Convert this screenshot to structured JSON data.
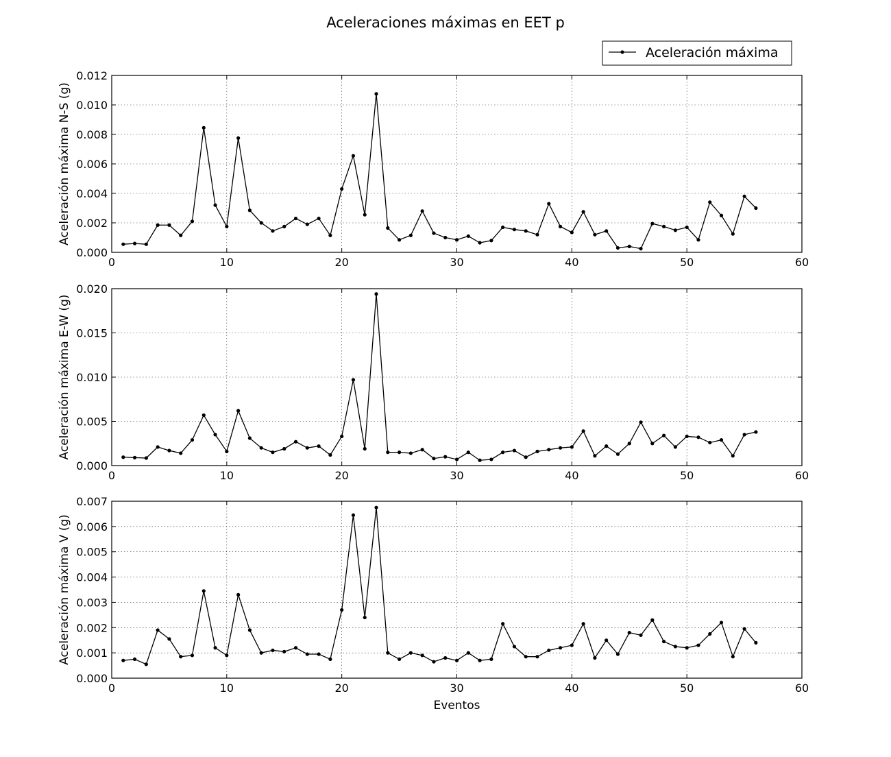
{
  "figure": {
    "title": "Aceleraciones máximas en EET p",
    "legend_label": "Aceleración máxima",
    "xlabel": "Eventos"
  },
  "chart_data": [
    {
      "type": "line",
      "title": "Aceleraciones máximas en EET p",
      "xlabel": "",
      "ylabel": "Aceleración máxima N-S (g)",
      "xlim": [
        0,
        60
      ],
      "ylim": [
        0,
        0.012
      ],
      "xticks": [
        0,
        10,
        20,
        30,
        40,
        50,
        60
      ],
      "xtick_labels": [
        "0",
        "10",
        "20",
        "30",
        "40",
        "50",
        "60"
      ],
      "yticks": [
        0,
        0.002,
        0.004,
        0.006,
        0.008,
        0.01,
        0.012
      ],
      "ytick_labels": [
        "0.000",
        "0.002",
        "0.004",
        "0.006",
        "0.008",
        "0.010",
        "0.012"
      ],
      "grid": true,
      "legend": "top-right, above plot",
      "color": "#000000",
      "series": [
        {
          "name": "Aceleración máxima",
          "x": [
            1,
            2,
            3,
            4,
            5,
            6,
            7,
            8,
            9,
            10,
            11,
            12,
            13,
            14,
            15,
            16,
            17,
            18,
            19,
            20,
            21,
            22,
            23,
            24,
            25,
            26,
            27,
            28,
            29,
            30,
            31,
            32,
            33,
            34,
            35,
            36,
            37,
            38,
            39,
            40,
            41,
            42,
            43,
            44,
            45,
            46,
            47,
            48,
            49,
            50,
            51,
            52,
            53,
            54,
            55,
            56
          ],
          "y": [
            0.00055,
            0.0006,
            0.00055,
            0.00185,
            0.00185,
            0.00115,
            0.0021,
            0.00845,
            0.0032,
            0.00175,
            0.00775,
            0.00285,
            0.002,
            0.00145,
            0.00175,
            0.0023,
            0.0019,
            0.0023,
            0.00115,
            0.0043,
            0.00655,
            0.00255,
            0.01075,
            0.00165,
            0.00085,
            0.00115,
            0.0028,
            0.0013,
            0.001,
            0.00085,
            0.0011,
            0.00065,
            0.0008,
            0.0017,
            0.00155,
            0.00145,
            0.0012,
            0.0033,
            0.00175,
            0.00135,
            0.00275,
            0.0012,
            0.00145,
            0.0003,
            0.0004,
            0.00025,
            0.00195,
            0.00175,
            0.0015,
            0.0017,
            0.00085,
            0.0034,
            0.0025,
            0.00125,
            0.0038,
            0.003
          ]
        }
      ]
    },
    {
      "type": "line",
      "xlabel": "",
      "ylabel": "Aceleración máxima E-W (g)",
      "xlim": [
        0,
        60
      ],
      "ylim": [
        0,
        0.02
      ],
      "xticks": [
        0,
        10,
        20,
        30,
        40,
        50,
        60
      ],
      "xtick_labels": [
        "0",
        "10",
        "20",
        "30",
        "40",
        "50",
        "60"
      ],
      "yticks": [
        0,
        0.005,
        0.01,
        0.015,
        0.02
      ],
      "ytick_labels": [
        "0.000",
        "0.005",
        "0.010",
        "0.015",
        "0.020"
      ],
      "grid": true,
      "color": "#000000",
      "series": [
        {
          "name": "Aceleración máxima",
          "x": [
            1,
            2,
            3,
            4,
            5,
            6,
            7,
            8,
            9,
            10,
            11,
            12,
            13,
            14,
            15,
            16,
            17,
            18,
            19,
            20,
            21,
            22,
            23,
            24,
            25,
            26,
            27,
            28,
            29,
            30,
            31,
            32,
            33,
            34,
            35,
            36,
            37,
            38,
            39,
            40,
            41,
            42,
            43,
            44,
            45,
            46,
            47,
            48,
            49,
            50,
            51,
            52,
            53,
            54,
            55,
            56
          ],
          "y": [
            0.00095,
            0.0009,
            0.00085,
            0.0021,
            0.0017,
            0.0014,
            0.0029,
            0.0057,
            0.0035,
            0.0016,
            0.0062,
            0.0031,
            0.002,
            0.0015,
            0.0019,
            0.0027,
            0.002,
            0.0022,
            0.0012,
            0.0033,
            0.0097,
            0.0019,
            0.0194,
            0.0015,
            0.0015,
            0.0014,
            0.0018,
            0.0008,
            0.001,
            0.0007,
            0.0015,
            0.0006,
            0.0007,
            0.0015,
            0.0017,
            0.00095,
            0.0016,
            0.0018,
            0.002,
            0.0021,
            0.0039,
            0.0011,
            0.0022,
            0.0013,
            0.0025,
            0.0049,
            0.0025,
            0.0034,
            0.0021,
            0.0033,
            0.0032,
            0.0026,
            0.0029,
            0.0011,
            0.0035,
            0.0038
          ]
        }
      ]
    },
    {
      "type": "line",
      "xlabel": "Eventos",
      "ylabel": "Aceleración máxima V (g)",
      "xlim": [
        0,
        60
      ],
      "ylim": [
        0,
        0.007
      ],
      "xticks": [
        0,
        10,
        20,
        30,
        40,
        50,
        60
      ],
      "xtick_labels": [
        "0",
        "10",
        "20",
        "30",
        "40",
        "50",
        "60"
      ],
      "yticks": [
        0,
        0.001,
        0.002,
        0.003,
        0.004,
        0.005,
        0.006,
        0.007
      ],
      "ytick_labels": [
        "0.000",
        "0.001",
        "0.002",
        "0.003",
        "0.004",
        "0.005",
        "0.006",
        "0.007"
      ],
      "grid": true,
      "color": "#000000",
      "series": [
        {
          "name": "Aceleración máxima",
          "x": [
            1,
            2,
            3,
            4,
            5,
            6,
            7,
            8,
            9,
            10,
            11,
            12,
            13,
            14,
            15,
            16,
            17,
            18,
            19,
            20,
            21,
            22,
            23,
            24,
            25,
            26,
            27,
            28,
            29,
            30,
            31,
            32,
            33,
            34,
            35,
            36,
            37,
            38,
            39,
            40,
            41,
            42,
            43,
            44,
            45,
            46,
            47,
            48,
            49,
            50,
            51,
            52,
            53,
            54,
            55,
            56
          ],
          "y": [
            0.0007,
            0.00075,
            0.00055,
            0.0019,
            0.00155,
            0.00085,
            0.0009,
            0.00345,
            0.0012,
            0.0009,
            0.0033,
            0.0019,
            0.001,
            0.0011,
            0.00105,
            0.0012,
            0.00095,
            0.00095,
            0.00075,
            0.0027,
            0.00645,
            0.0024,
            0.00675,
            0.001,
            0.00075,
            0.001,
            0.0009,
            0.00065,
            0.0008,
            0.0007,
            0.001,
            0.0007,
            0.00075,
            0.00215,
            0.00125,
            0.00085,
            0.00085,
            0.0011,
            0.0012,
            0.0013,
            0.00215,
            0.0008,
            0.0015,
            0.00095,
            0.0018,
            0.0017,
            0.0023,
            0.00145,
            0.00125,
            0.0012,
            0.0013,
            0.00175,
            0.0022,
            0.00085,
            0.00195,
            0.0014
          ]
        }
      ]
    }
  ]
}
